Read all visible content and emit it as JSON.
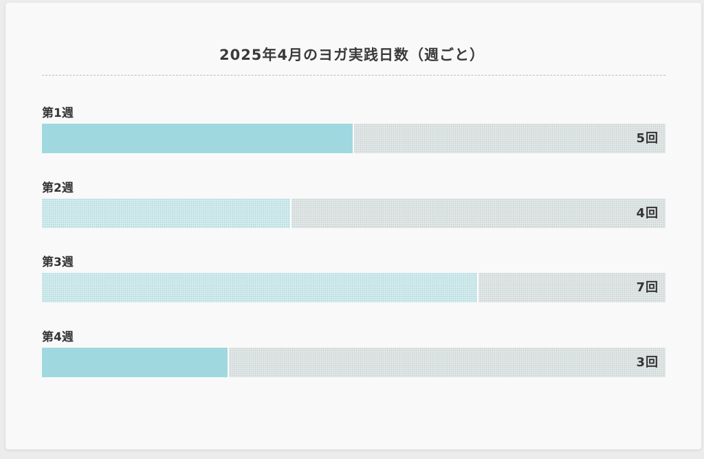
{
  "chart_data": {
    "type": "bar",
    "orientation": "horizontal",
    "title": "2025年4月のヨガ実践日数（週ごと）",
    "categories": [
      "第1週",
      "第2週",
      "第3週",
      "第4週"
    ],
    "values": [
      5,
      4,
      7,
      3
    ],
    "value_labels": [
      "5回",
      "4回",
      "7回",
      "3回"
    ],
    "xlim": [
      0,
      10
    ],
    "fill_styles": [
      "solid",
      "dotted",
      "dotted",
      "solid"
    ],
    "grid": false,
    "legend": "none"
  },
  "colors": {
    "bar_fill": "#9fd9df",
    "track": "#e3e8e8",
    "title_text": "#3a3a3a"
  }
}
